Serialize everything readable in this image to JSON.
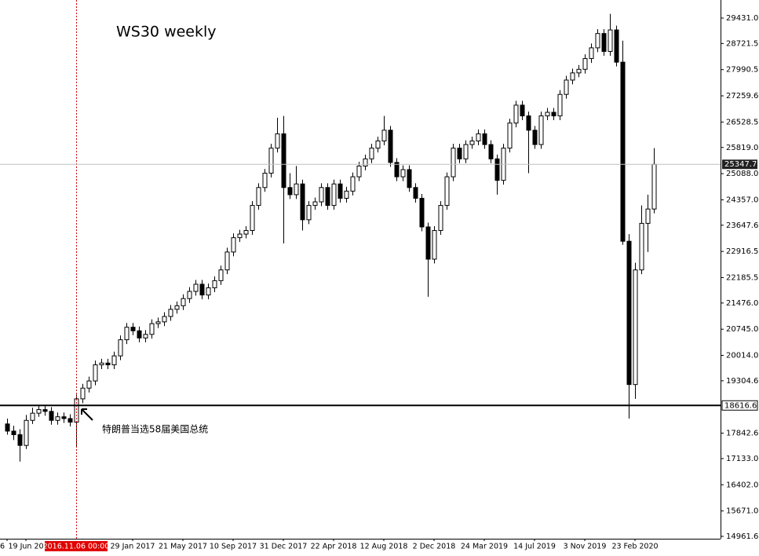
{
  "chart_data": {
    "type": "candlestick",
    "title": "WS30 weekly",
    "annotation": "特朗普当选58届美国总统",
    "categories": [
      "6",
      null,
      null,
      "19 Jun 20",
      null,
      null,
      null,
      null,
      null,
      null,
      null,
      "2016.11.06 00:00",
      null,
      null,
      null,
      null,
      null,
      null,
      null,
      null,
      "29 Jan 2017",
      null,
      null,
      null,
      null,
      null,
      null,
      null,
      "21 May 2017",
      null,
      null,
      null,
      null,
      null,
      null,
      null,
      "10 Sep 2017",
      null,
      null,
      null,
      null,
      null,
      null,
      null,
      "31 Dec 2017",
      null,
      null,
      null,
      null,
      null,
      null,
      null,
      "22 Apr 2018",
      null,
      null,
      null,
      null,
      null,
      null,
      null,
      "12 Aug 2018",
      null,
      null,
      null,
      null,
      null,
      null,
      null,
      "2 Dec 2018",
      null,
      null,
      null,
      null,
      null,
      null,
      null,
      "24 Mar 2019",
      null,
      null,
      null,
      null,
      null,
      null,
      null,
      "14 Jul 2019",
      null,
      null,
      null,
      null,
      null,
      null,
      null,
      "3 Nov 2019",
      null,
      null,
      null,
      null,
      null,
      null,
      null,
      "23 Feb 2020",
      null,
      null,
      null
    ],
    "open": [
      18100,
      17900,
      17800,
      17500,
      18200,
      18400,
      18500,
      18450,
      18200,
      18300,
      18250,
      18150,
      18800,
      19100,
      19300,
      19750,
      19800,
      19750,
      20000,
      20450,
      20800,
      20700,
      20500,
      20600,
      20900,
      20950,
      21100,
      21300,
      21400,
      21600,
      21800,
      22000,
      21700,
      21900,
      22100,
      22400,
      22900,
      23300,
      23400,
      23500,
      24200,
      24700,
      25100,
      25800,
      26200,
      24700,
      24500,
      24800,
      23800,
      24200,
      24300,
      24700,
      24200,
      24800,
      24400,
      24600,
      25000,
      25300,
      25500,
      25800,
      26000,
      26300,
      25400,
      25000,
      25200,
      24700,
      24400,
      23600,
      22700,
      23500,
      24200,
      25000,
      25800,
      25500,
      25900,
      26000,
      26200,
      25900,
      25500,
      24900,
      25800,
      26500,
      27000,
      26700,
      26300,
      25900,
      26700,
      26800,
      26700,
      27300,
      27700,
      27900,
      28000,
      28300,
      28600,
      29000,
      28500,
      29100,
      28200,
      23200,
      19200,
      22400,
      23700,
      24100
    ],
    "high": [
      18250,
      18050,
      17950,
      18350,
      18550,
      18620,
      18600,
      18570,
      18420,
      18420,
      18370,
      18920,
      19220,
      19420,
      19870,
      19920,
      19920,
      20120,
      20570,
      20920,
      20920,
      20820,
      20720,
      21020,
      21070,
      21220,
      21420,
      21520,
      21720,
      21920,
      22120,
      22120,
      22020,
      22220,
      22520,
      23020,
      23420,
      23520,
      23620,
      24320,
      24820,
      25220,
      25920,
      26650,
      26700,
      25100,
      25300,
      24920,
      24320,
      24420,
      24820,
      24820,
      24920,
      24920,
      24720,
      25120,
      25420,
      25620,
      25920,
      26120,
      26700,
      26420,
      25520,
      25320,
      25320,
      24820,
      24520,
      23720,
      23620,
      24320,
      25120,
      25920,
      25920,
      26020,
      26120,
      26320,
      26320,
      26020,
      25620,
      25920,
      26620,
      27120,
      27120,
      26820,
      26420,
      26820,
      26920,
      26920,
      27420,
      27820,
      28020,
      28120,
      28420,
      28720,
      29120,
      29120,
      29550,
      29220,
      28800,
      23400,
      22600,
      24200,
      24500,
      25800
    ],
    "low": [
      17800,
      17650,
      17050,
      17400,
      18100,
      18300,
      18330,
      18080,
      18080,
      18130,
      18030,
      17450,
      18680,
      18980,
      19180,
      19630,
      19630,
      19630,
      19880,
      20330,
      20580,
      20380,
      20380,
      20480,
      20780,
      20830,
      20980,
      21180,
      21280,
      21480,
      21680,
      21580,
      21580,
      21780,
      21980,
      22280,
      22780,
      23180,
      23280,
      23380,
      24080,
      24580,
      24980,
      25680,
      23140,
      24380,
      24380,
      23500,
      23680,
      24080,
      24180,
      24080,
      24080,
      24280,
      24280,
      24480,
      24880,
      25180,
      25380,
      25680,
      25880,
      25280,
      24880,
      24880,
      24580,
      24280,
      23480,
      21650,
      22580,
      23380,
      24080,
      24880,
      25380,
      25380,
      25780,
      25880,
      25780,
      25380,
      24500,
      24780,
      25680,
      26380,
      26580,
      25100,
      25780,
      25780,
      26580,
      26580,
      26580,
      27180,
      27580,
      27780,
      27880,
      28180,
      28480,
      28380,
      28380,
      28080,
      23100,
      18250,
      18800,
      22280,
      22900,
      23980
    ],
    "close": [
      17900,
      17800,
      17500,
      18200,
      18400,
      18500,
      18450,
      18200,
      18300,
      18250,
      18150,
      18800,
      19100,
      19300,
      19750,
      19800,
      19750,
      20000,
      20450,
      20800,
      20700,
      20500,
      20600,
      20900,
      20950,
      21100,
      21300,
      21400,
      21600,
      21800,
      22000,
      21700,
      21900,
      22100,
      22400,
      22900,
      23300,
      23400,
      23500,
      24200,
      24700,
      25100,
      25800,
      26200,
      24700,
      24500,
      24800,
      23800,
      24200,
      24300,
      24700,
      24200,
      24800,
      24400,
      24600,
      25000,
      25300,
      25500,
      25800,
      26000,
      26300,
      25400,
      25000,
      25200,
      24700,
      24400,
      23600,
      22700,
      23500,
      24200,
      25000,
      25800,
      25500,
      25900,
      26000,
      26200,
      25900,
      25500,
      24900,
      25800,
      26500,
      27000,
      26700,
      26300,
      25900,
      26700,
      26800,
      26700,
      27300,
      27700,
      27900,
      28000,
      28300,
      28600,
      29000,
      28500,
      29100,
      28200,
      23200,
      19200,
      22400,
      23700,
      24100,
      25347.7
    ],
    "ylim": [
      14895.4,
      29935.3
    ],
    "yticks": [
      {
        "value": 29431,
        "label": "29431.0"
      },
      28721.5,
      27990.5,
      27259.6,
      26528.5,
      {
        "value": 25819,
        "label": "25819.0"
      },
      {
        "value": 25088,
        "label": "25088.0"
      },
      {
        "value": 24357,
        "label": "24357.0"
      },
      23647.6,
      22916.5,
      22185.5,
      {
        "value": 21476,
        "label": "21476.0"
      },
      {
        "value": 20745,
        "label": "20745.0"
      },
      {
        "value": 20014,
        "label": "20014.0"
      },
      19304.6,
      17842.6,
      {
        "value": 17133,
        "label": "17133.0"
      },
      {
        "value": 16402,
        "label": "16402.0"
      },
      {
        "value": 15671,
        "label": "15671.0"
      },
      14961.6
    ],
    "current_price": 25347.7,
    "level": 18616.6
  }
}
